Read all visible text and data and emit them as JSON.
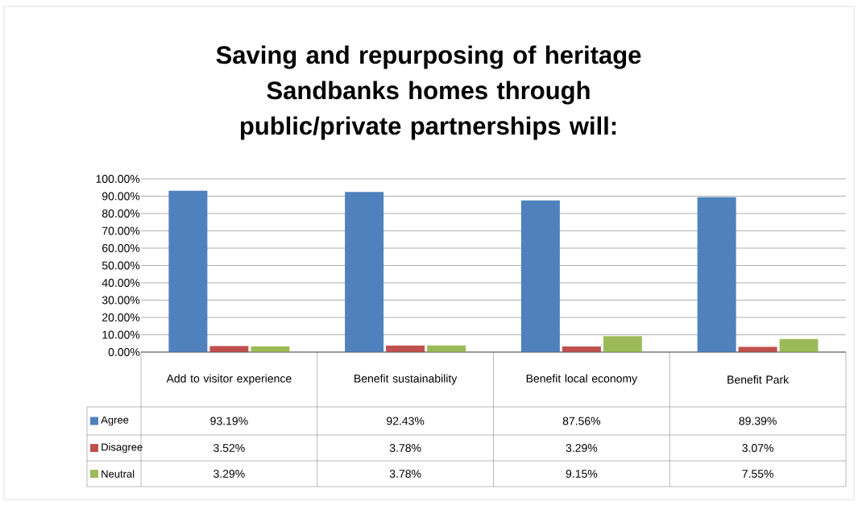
{
  "chart_data": {
    "type": "bar",
    "title": "Saving and repurposing of heritage Sandbanks homes through public/private partnerships will:",
    "categories": [
      "Add to visitor experience",
      "Benefit sustainability",
      "Benefit local economy",
      "Benefit Park"
    ],
    "series": [
      {
        "name": "Agree",
        "color": "#4f81bd",
        "values": [
          93.19,
          92.43,
          87.56,
          89.39
        ],
        "value_labels": [
          "93.19%",
          "92.43%",
          "87.56%",
          "89.39%"
        ]
      },
      {
        "name": "Disagree",
        "color": "#c0504d",
        "values": [
          3.52,
          3.78,
          3.29,
          3.07
        ],
        "value_labels": [
          "3.52%",
          "3.78%",
          "3.29%",
          "3.07%"
        ]
      },
      {
        "name": "Neutral",
        "color": "#9bbb59",
        "values": [
          3.29,
          3.78,
          9.15,
          7.55
        ],
        "value_labels": [
          "3.29%",
          "3.78%",
          "9.15%",
          "7.55%"
        ]
      }
    ],
    "ylim": [
      0,
      100
    ],
    "yticks": [
      {
        "value": 0,
        "label": "0.00%"
      },
      {
        "value": 10,
        "label": "10.00%"
      },
      {
        "value": 20,
        "label": "20.00%"
      },
      {
        "value": 30,
        "label": "30.00%"
      },
      {
        "value": 40,
        "label": "40.00%"
      },
      {
        "value": 50,
        "label": "50.00%"
      },
      {
        "value": 60,
        "label": "60.00%"
      },
      {
        "value": 70,
        "label": "70.00%"
      },
      {
        "value": 80,
        "label": "80.00%"
      },
      {
        "value": 90,
        "label": "90.00%"
      },
      {
        "value": 100,
        "label": "100.00%"
      }
    ],
    "grid": "y",
    "legend": "bottom left"
  }
}
